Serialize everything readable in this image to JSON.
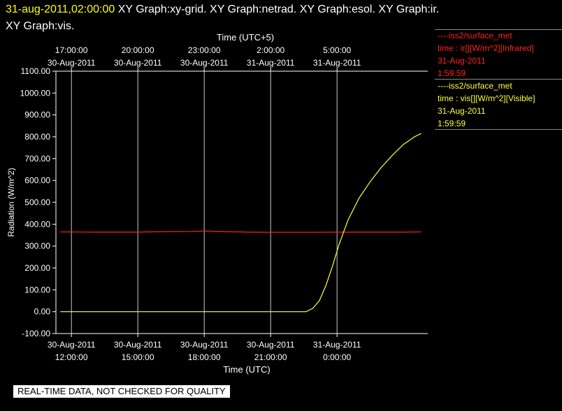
{
  "header": {
    "timestamp": "31-aug-2011,02:00:00",
    "graphs_line1": " XY Graph:xy-grid.  XY Graph:netrad.  XY Graph:esol.  XY Graph:ir.",
    "graphs_line2": "XY Graph:vis."
  },
  "legend": {
    "ir": {
      "source": "----iss2/surface_met",
      "field": "time : ir[][W/m^2][Infrared]",
      "date": "31-Aug-2011",
      "time": "1:59:59",
      "color": "#ff2020"
    },
    "vis": {
      "source": "----iss2/surface_met",
      "field": "time : vis[][W/m^2][Visible]",
      "date": "31-Aug-2011",
      "time": "1:59:59",
      "color": "#ffff40"
    }
  },
  "banner": "REAL-TIME DATA, NOT CHECKED FOR QUALITY",
  "chart_data": {
    "type": "line",
    "ylabel": "Radiation (W/m^2)",
    "xlabel": "Time (UTC)",
    "x2label": "Time (UTC+5)",
    "ylim": [
      -100,
      1100
    ],
    "xlim_hours": [
      11.3,
      28.1
    ],
    "yticks": [
      "-100.00",
      "0.00",
      "100.00",
      "200.00",
      "300.00",
      "400.00",
      "500.00",
      "600.00",
      "700.00",
      "800.00",
      "900.00",
      "1000.00",
      "1100.00"
    ],
    "bottom_ticks": [
      {
        "hour": 12,
        "date": "30-Aug-2011",
        "time": "12:00:00"
      },
      {
        "hour": 15,
        "date": "30-Aug-2011",
        "time": "15:00:00"
      },
      {
        "hour": 18,
        "date": "30-Aug-2011",
        "time": "18:00:00"
      },
      {
        "hour": 21,
        "date": "30-Aug-2011",
        "time": "21:00:00"
      },
      {
        "hour": 24,
        "date": "31-Aug-2011",
        "time": "0:00:00"
      }
    ],
    "top_ticks": [
      {
        "hour": 12,
        "time": "17:00:00",
        "date": "30-Aug-2011"
      },
      {
        "hour": 15,
        "time": "20:00:00",
        "date": "30-Aug-2011"
      },
      {
        "hour": 18,
        "time": "23:00:00",
        "date": "30-Aug-2011"
      },
      {
        "hour": 21,
        "time": "2:00:00",
        "date": "31-Aug-2011"
      },
      {
        "hour": 24,
        "time": "5:00:00",
        "date": "31-Aug-2011"
      }
    ],
    "grid": true,
    "series": [
      {
        "name": "ir",
        "color": "#ff2020",
        "x": [
          11.5,
          13,
          15,
          16,
          17.5,
          18,
          19,
          20,
          21,
          22,
          23,
          24,
          25,
          26,
          27,
          27.8
        ],
        "y": [
          365,
          364,
          364,
          366,
          367,
          369,
          366,
          364,
          363,
          363,
          363,
          364,
          364,
          364,
          364,
          365
        ]
      },
      {
        "name": "vis",
        "color": "#ffff40",
        "x": [
          11.5,
          14,
          17,
          20,
          22.6,
          22.9,
          23.2,
          23.5,
          23.8,
          24.1,
          24.5,
          25,
          25.5,
          26,
          26.5,
          27,
          27.5,
          27.8
        ],
        "y": [
          0,
          0,
          0,
          0,
          0,
          15,
          50,
          120,
          210,
          310,
          420,
          520,
          595,
          660,
          715,
          765,
          800,
          815
        ]
      }
    ]
  }
}
